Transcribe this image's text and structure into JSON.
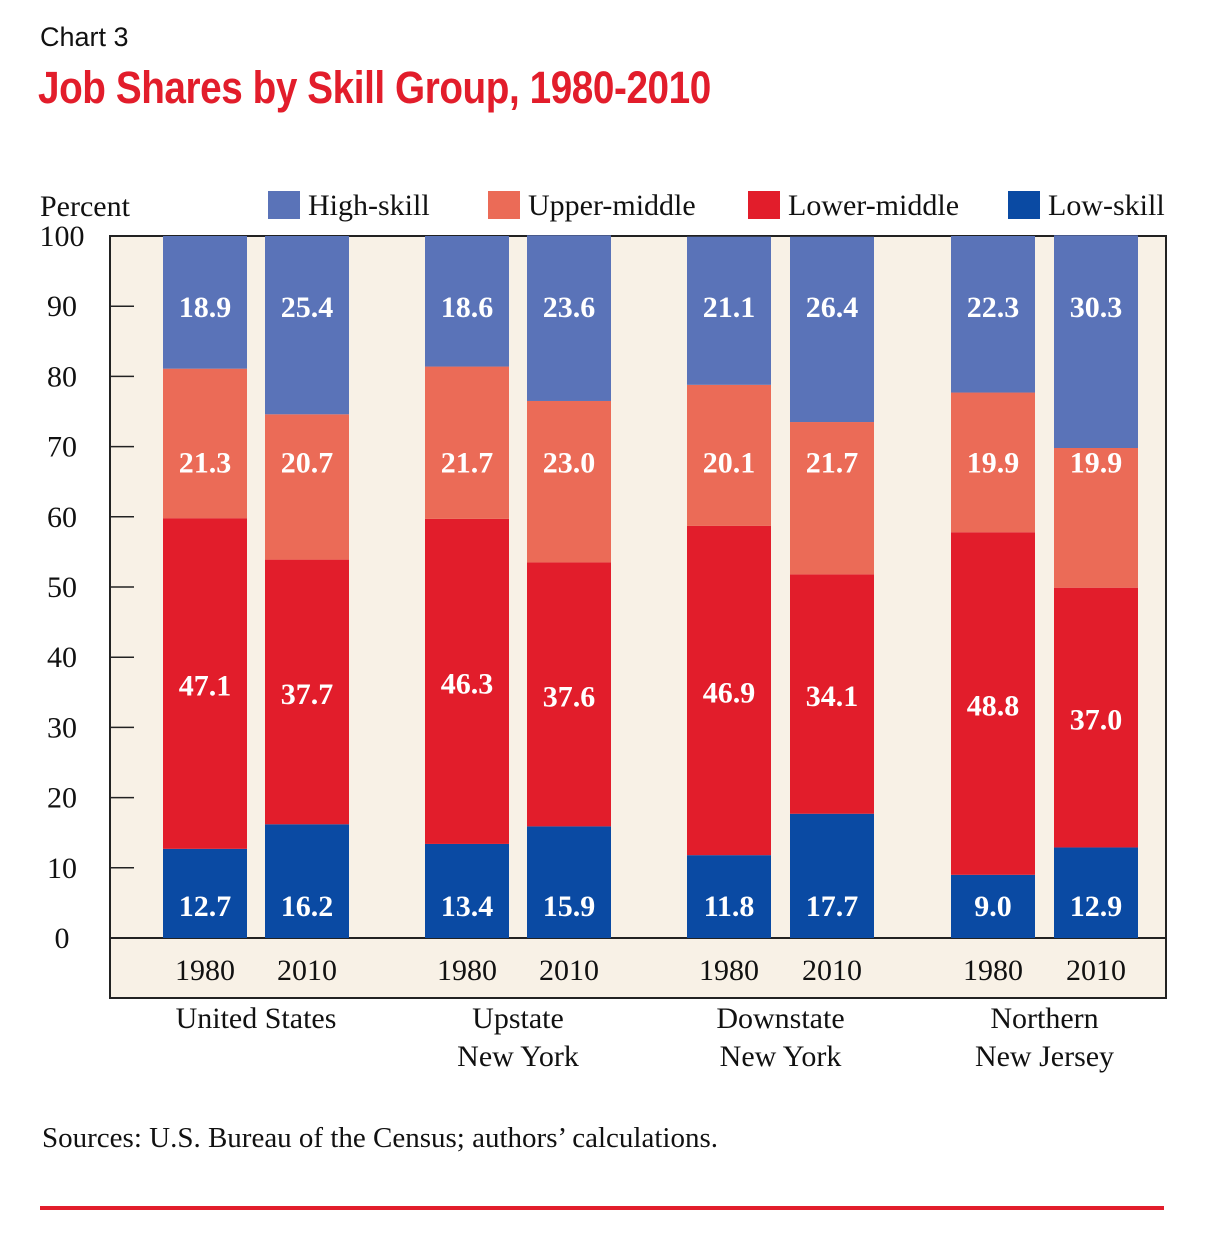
{
  "header": {
    "chart_label": "Chart 3",
    "title": "Job Shares by Skill Group, 1980-2010"
  },
  "footer": {
    "source": "Sources: U.S. Bureau of the Census; authors’ calculations."
  },
  "chart_data": {
    "type": "bar",
    "stacked": true,
    "title": "Job Shares by Skill Group, 1980-2010",
    "ylabel": "Percent",
    "xlabel": "",
    "ylim": [
      0,
      100
    ],
    "yticks": [
      0,
      10,
      20,
      30,
      40,
      50,
      60,
      70,
      80,
      90,
      100
    ],
    "grid": false,
    "legend_position": "top",
    "groups": [
      {
        "label": [
          "United States"
        ],
        "years": [
          "1980",
          "2010"
        ]
      },
      {
        "label": [
          "Upstate",
          "New York"
        ],
        "years": [
          "1980",
          "2010"
        ]
      },
      {
        "label": [
          "Downstate",
          "New York"
        ],
        "years": [
          "1980",
          "2010"
        ]
      },
      {
        "label": [
          "Northern",
          "New Jersey"
        ],
        "years": [
          "1980",
          "2010"
        ]
      }
    ],
    "series": [
      {
        "name": "Low-skill",
        "color": "#0a4aa3",
        "values": [
          12.7,
          16.2,
          13.4,
          15.9,
          11.8,
          17.7,
          9.0,
          12.9
        ]
      },
      {
        "name": "Lower-middle",
        "color": "#e21d2b",
        "values": [
          47.1,
          37.7,
          46.3,
          37.6,
          46.9,
          34.1,
          48.8,
          37.0
        ]
      },
      {
        "name": "Upper-middle",
        "color": "#eb6b57",
        "values": [
          21.3,
          20.7,
          21.7,
          23.0,
          20.1,
          21.7,
          19.9,
          19.9
        ]
      },
      {
        "name": "High-skill",
        "color": "#5a73b8",
        "values": [
          18.9,
          25.4,
          18.6,
          23.6,
          21.1,
          26.4,
          22.3,
          30.3
        ]
      }
    ],
    "legend_order": [
      "High-skill",
      "Upper-middle",
      "Lower-middle",
      "Low-skill"
    ],
    "plot_background": "#f8f1e6"
  }
}
